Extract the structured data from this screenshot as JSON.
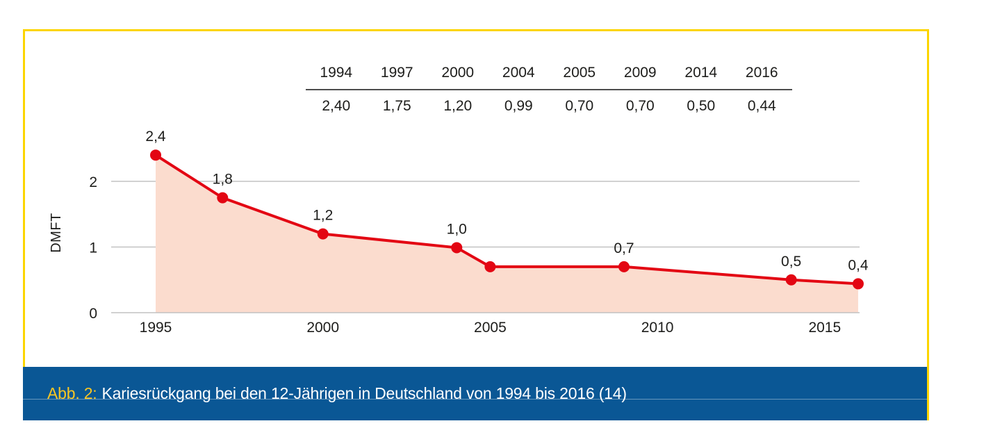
{
  "colors": {
    "frame_yellow": "#fcd500",
    "caption_blue": "#0a5795",
    "caption_prefix_gold": "#f9c623",
    "line_red": "#e30613",
    "area_pink": "#fbdcce",
    "grid_gray": "#c2c2c2",
    "text_dark": "#1d1d1b"
  },
  "table": {
    "years": [
      "1994",
      "1997",
      "2000",
      "2004",
      "2005",
      "2009",
      "2014",
      "2016"
    ],
    "values": [
      "2,40",
      "1,75",
      "1,20",
      "0,99",
      "0,70",
      "0,70",
      "0,50",
      "0,44"
    ]
  },
  "chart_data": {
    "type": "area",
    "title": "",
    "xlabel": "",
    "ylabel": "DMFT",
    "x": [
      1994,
      1997,
      2000,
      2004,
      2005,
      2009,
      2014,
      2016
    ],
    "values": [
      2.4,
      1.75,
      1.2,
      0.99,
      0.7,
      0.7,
      0.5,
      0.44
    ],
    "point_labels": [
      "2,4",
      "1,8",
      "1,2",
      "1,0",
      "",
      "0,7",
      "0,5",
      "0,4"
    ],
    "x_ticks": [
      "1995",
      "2000",
      "2005",
      "2010",
      "2015"
    ],
    "y_ticks": [
      "0",
      "1",
      "2"
    ],
    "ylim": [
      0,
      2.55
    ],
    "xlim": [
      1995,
      2016
    ],
    "grid": "horizontal",
    "legend": "none"
  },
  "caption": {
    "prefix": "Abb. 2:",
    "text": "Kariesrückgang bei den 12-Jährigen in Deutschland von 1994 bis 2016 (14)"
  }
}
